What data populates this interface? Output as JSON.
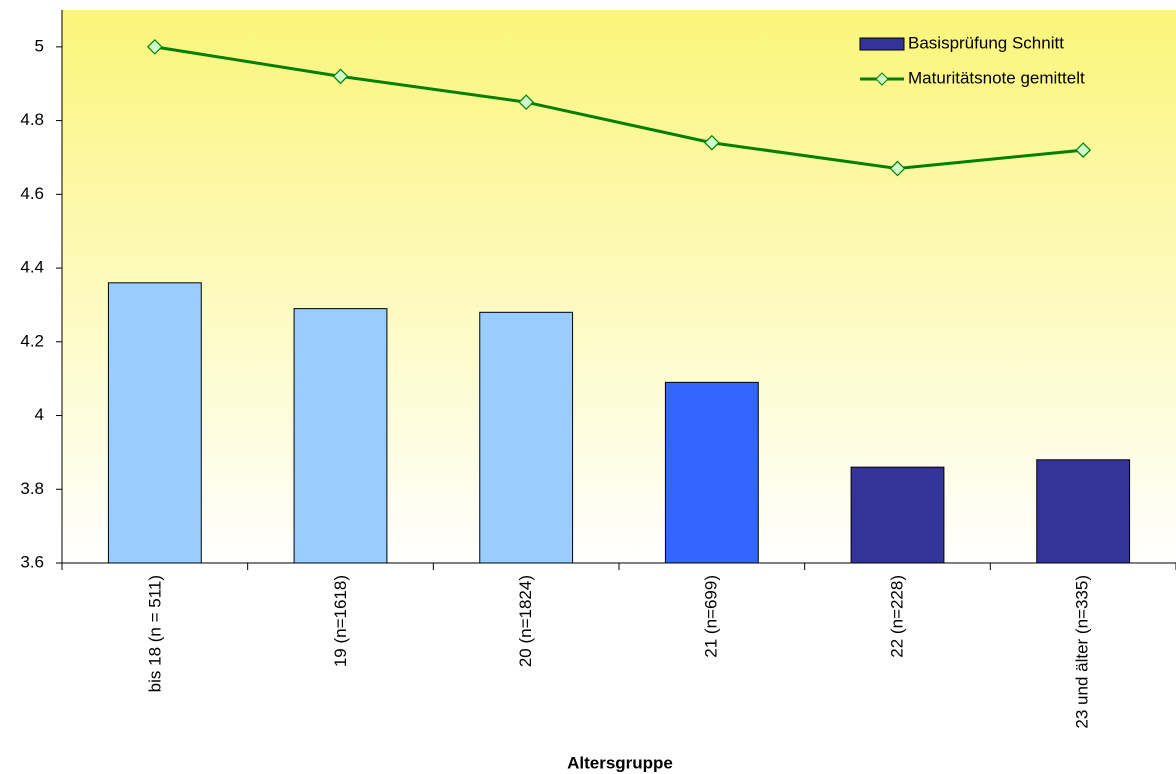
{
  "chart_data": {
    "type": "combo",
    "x_label": "Altersgruppe",
    "categories": [
      "bis 18 (n = 511)",
      "19 (n=1618)",
      "20 (n=1824)",
      "21 (n=699)",
      "22 (n=228)",
      "23 und älter (n=335)"
    ],
    "series": [
      {
        "name": "Basisprüfung Schnitt",
        "type": "bar",
        "color": "#333399",
        "colors": [
          "#99ccff",
          "#99ccff",
          "#99ccff",
          "#3366ff",
          "#333399",
          "#333399"
        ],
        "values": [
          4.36,
          4.29,
          4.28,
          4.09,
          3.86,
          3.88
        ]
      },
      {
        "name": "Maturitätsnote gemittelt",
        "type": "line",
        "color": "#008000",
        "marker_fill": "#ccffcc",
        "values": [
          5.0,
          4.92,
          4.85,
          4.74,
          4.67,
          4.72
        ]
      }
    ],
    "ylim": [
      3.6,
      5.1
    ],
    "yticks": [
      3.6,
      3.8,
      4,
      4.2,
      4.4,
      4.6,
      4.8,
      5
    ],
    "legend": "top-right"
  }
}
